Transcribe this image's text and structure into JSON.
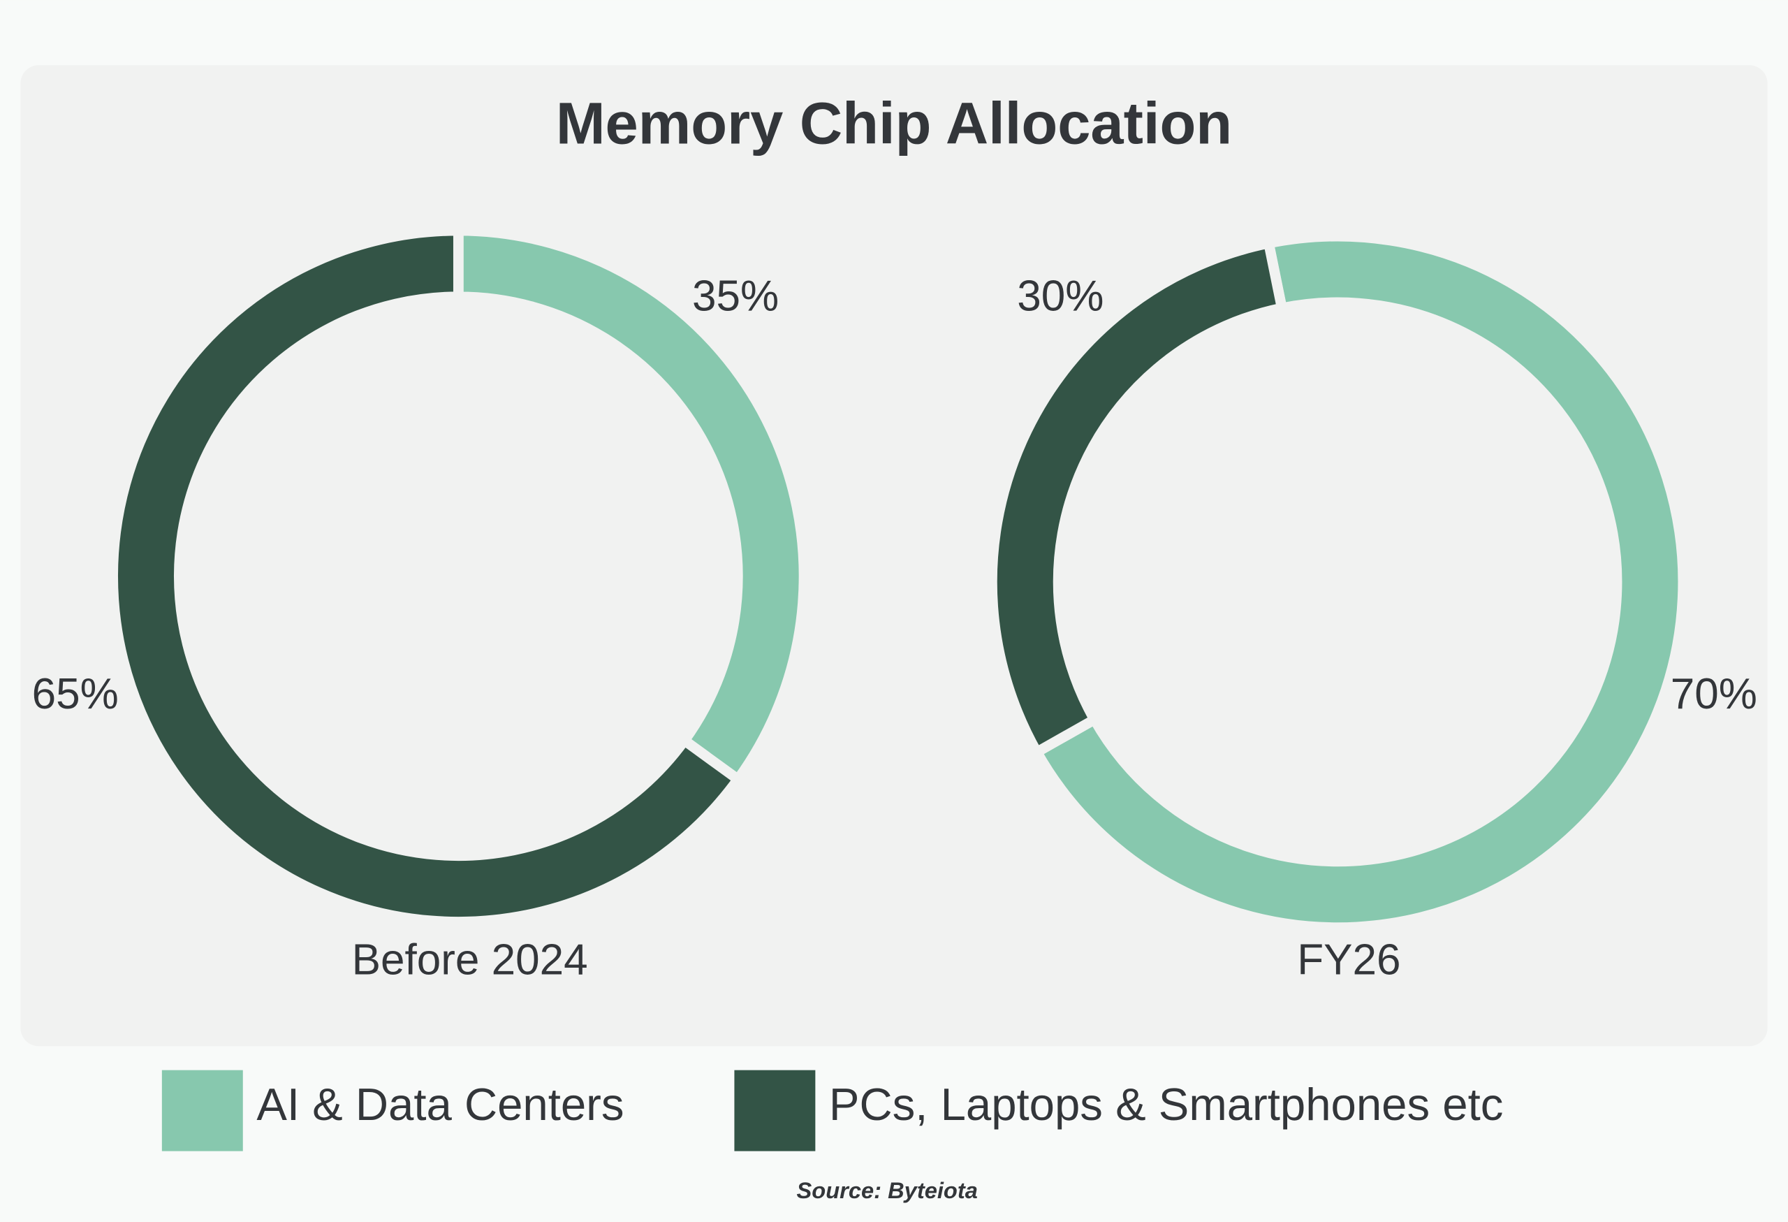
{
  "title": "Memory Chip Allocation",
  "source": "Source: Byteiota",
  "legend": {
    "categories": [
      "AI & Data Centers",
      "PCs, Laptops & Smartphones etc"
    ],
    "colors": [
      "#87c8ae",
      "#335446"
    ]
  },
  "chart_data": [
    {
      "type": "pie",
      "title": "Before 2024",
      "values": [
        35,
        65
      ],
      "value_labels": [
        "35%",
        "65%"
      ]
    },
    {
      "type": "pie",
      "title": "FY26",
      "values": [
        70,
        30
      ],
      "value_labels": [
        "70%",
        "30%"
      ]
    }
  ]
}
